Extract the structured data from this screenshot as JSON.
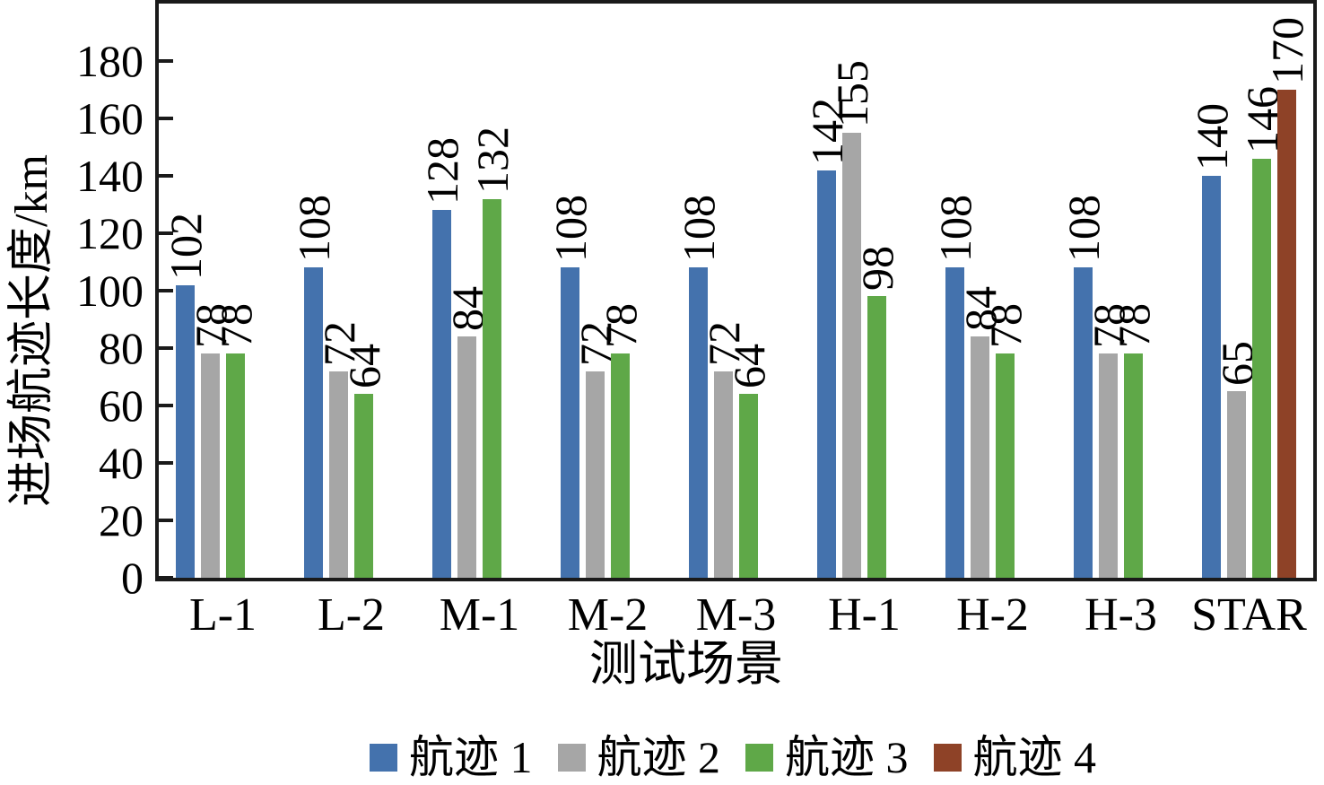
{
  "chart_data": {
    "type": "bar",
    "title": "",
    "xlabel": "测试场景",
    "ylabel": "进场航迹长度/km",
    "categories": [
      "L-1",
      "L-2",
      "M-1",
      "M-2",
      "M-3",
      "H-1",
      "H-2",
      "H-3",
      "STAR"
    ],
    "series": [
      {
        "name": "航迹 1",
        "color": "#4472ad",
        "values": [
          102,
          108,
          128,
          108,
          108,
          142,
          108,
          108,
          140
        ]
      },
      {
        "name": "航迹 2",
        "color": "#a6a6a6",
        "values": [
          78,
          72,
          84,
          72,
          72,
          155,
          84,
          78,
          65
        ]
      },
      {
        "name": "航迹 3",
        "color": "#5fa848",
        "values": [
          78,
          64,
          132,
          78,
          64,
          98,
          78,
          78,
          146
        ]
      },
      {
        "name": "航迹 4",
        "color": "#8e4227",
        "values": [
          null,
          null,
          null,
          null,
          null,
          null,
          null,
          null,
          170
        ]
      }
    ],
    "yticks": [
      0,
      20,
      40,
      60,
      80,
      100,
      120,
      140,
      160,
      180
    ],
    "ylim": [
      0,
      200
    ],
    "grid": false,
    "legend_position": "bottom",
    "axis_color": "#1a1a1a",
    "bar_value_labels_rotation_deg": 90
  }
}
